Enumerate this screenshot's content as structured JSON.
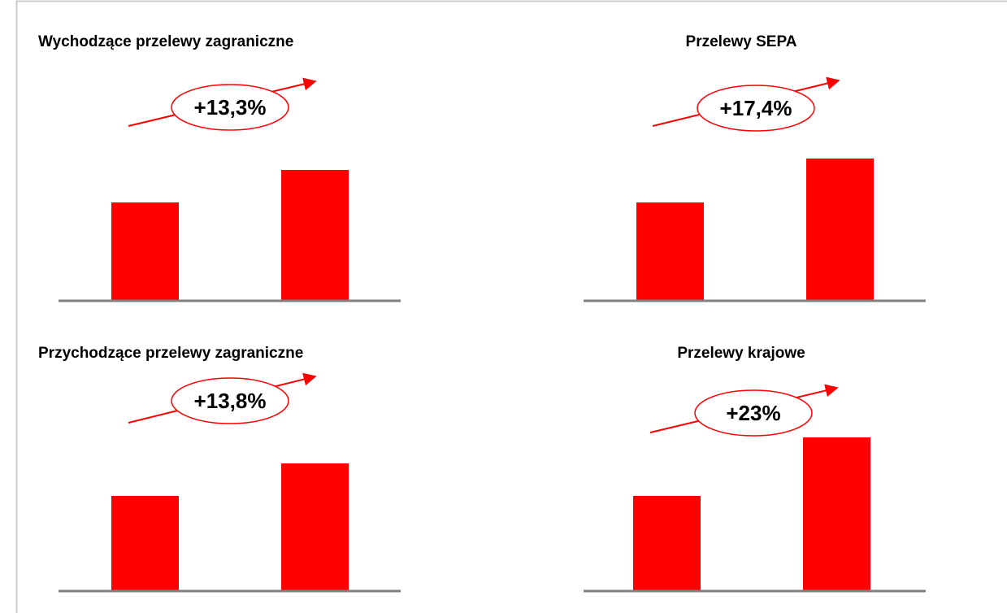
{
  "chart_data": [
    {
      "type": "bar",
      "title": "Wychodzące przelewy zagraniczne",
      "annotation": "+13,3%",
      "categories": [
        null,
        null
      ],
      "values": [
        121,
        161
      ],
      "color": "#ff0000",
      "ylim": [
        0,
        200
      ]
    },
    {
      "type": "bar",
      "title": "Przelewy SEPA",
      "annotation": "+17,4%",
      "categories": [
        null,
        null
      ],
      "values": [
        121,
        175
      ],
      "color": "#ff0000",
      "ylim": [
        0,
        200
      ]
    },
    {
      "type": "bar",
      "title": "Przychodzące przelewy zagraniczne",
      "annotation": "+13,8%",
      "categories": [
        null,
        null
      ],
      "values": [
        117,
        157
      ],
      "color": "#ff0000",
      "ylim": [
        0,
        200
      ]
    },
    {
      "type": "bar",
      "title": "Przelewy krajowe",
      "annotation": "+23%",
      "categories": [
        null,
        null
      ],
      "values": [
        117,
        189
      ],
      "color": "#ff0000",
      "ylim": [
        0,
        200
      ]
    }
  ]
}
